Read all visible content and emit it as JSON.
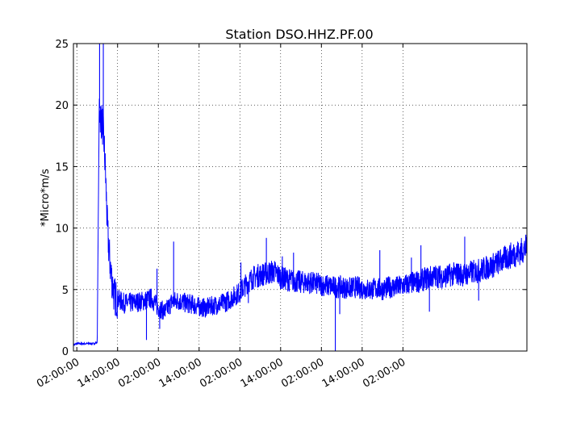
{
  "chart_data": {
    "type": "line",
    "title": "Station DSO.HHZ.PF.00",
    "xlabel": "",
    "ylabel": "*Micro*m/s",
    "ylim": [
      0,
      25
    ],
    "xlim_hours": [
      -1,
      132.5
    ],
    "grid": true,
    "legend": "none",
    "x_tick_labels": [
      "02:00:00",
      "14:00:00",
      "02:00:00",
      "14:00:00",
      "02:00:00",
      "14:00:00",
      "02:00:00",
      "14:00:00",
      "02:00:00"
    ],
    "x_tick_hours": [
      0,
      12,
      24,
      36,
      48,
      60,
      72,
      84,
      96
    ],
    "y_ticks": [
      0,
      5,
      10,
      15,
      20,
      25
    ],
    "line_color": "#0000ff",
    "series": [
      {
        "hours": [
          -1,
          0,
          3,
          5,
          6,
          6.6,
          7,
          7.5,
          8,
          8.5,
          9,
          9.5,
          10,
          10.5,
          11,
          12,
          14,
          16,
          18,
          20,
          22,
          24,
          26,
          28,
          30,
          32,
          34,
          36,
          38,
          40,
          42,
          44,
          46,
          48,
          50,
          52,
          54,
          56,
          58,
          60,
          62,
          64,
          66,
          68,
          70,
          72,
          74,
          76,
          78,
          80,
          82,
          84,
          86,
          88,
          90,
          92,
          94,
          96,
          98,
          100,
          102,
          104,
          106,
          108,
          110,
          112,
          114,
          116,
          118,
          120,
          122,
          124,
          126,
          128,
          130,
          132,
          132.5
        ],
        "values": [
          0.5,
          0.6,
          0.6,
          0.6,
          0.7,
          20,
          19,
          18.5,
          17,
          14,
          10,
          8,
          6.5,
          5.5,
          4.5,
          4.2,
          3.9,
          3.9,
          4.0,
          4.1,
          4.3,
          3.5,
          3.2,
          4.0,
          4.1,
          3.9,
          3.8,
          3.6,
          3.5,
          3.7,
          3.8,
          4.0,
          4.4,
          4.8,
          5.5,
          6.0,
          6.2,
          6.3,
          6.5,
          6.0,
          5.8,
          5.7,
          5.6,
          5.6,
          5.5,
          5.4,
          5.3,
          5.2,
          5.2,
          5.1,
          5.2,
          5.1,
          5.0,
          5.1,
          5.0,
          5.2,
          5.2,
          5.3,
          5.5,
          5.6,
          5.8,
          6.0,
          6.1,
          6.0,
          6.2,
          6.3,
          6.2,
          6.4,
          6.5,
          6.7,
          6.9,
          7.2,
          7.5,
          7.8,
          8.0,
          8.3,
          8.5
        ]
      }
    ],
    "spikes": [
      {
        "hour": 6.7,
        "value": 25
      },
      {
        "hour": 7.8,
        "value": 25
      },
      {
        "hour": 23.6,
        "value": 6.7
      },
      {
        "hour": 28.5,
        "value": 8.9
      },
      {
        "hour": 20.5,
        "value": 0.9
      },
      {
        "hour": 24.4,
        "value": 1.8
      },
      {
        "hour": 48.3,
        "value": 7.2
      },
      {
        "hour": 50.5,
        "value": 3.9
      },
      {
        "hour": 55.8,
        "value": 9.2
      },
      {
        "hour": 57.8,
        "value": 6.0
      },
      {
        "hour": 60.5,
        "value": 7.7
      },
      {
        "hour": 63.8,
        "value": 8.0
      },
      {
        "hour": 76.1,
        "value": 0
      },
      {
        "hour": 77.4,
        "value": 3.0
      },
      {
        "hour": 89.2,
        "value": 8.2
      },
      {
        "hour": 103.8,
        "value": 3.2
      },
      {
        "hour": 114.2,
        "value": 9.3
      },
      {
        "hour": 118.3,
        "value": 4.1
      },
      {
        "hour": 101.3,
        "value": 8.6
      },
      {
        "hour": 98.5,
        "value": 7.6
      }
    ]
  }
}
